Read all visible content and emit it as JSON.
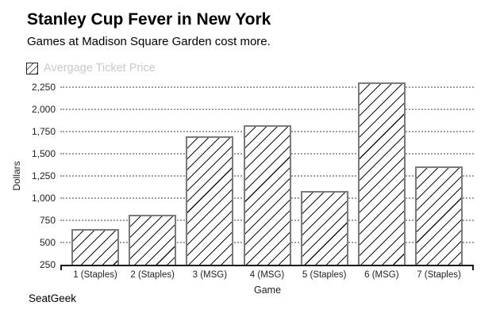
{
  "footer": {
    "brand": "SeatGeek"
  },
  "colors": {
    "background": "#ffffff",
    "title_text": "#000000",
    "legend_text": "#c9c9c9",
    "gridline": "#9e9e9e",
    "axis_line": "#1a1a1a",
    "tick_text": "#1f1f1f",
    "bar_border": "#7b7b7b",
    "bar_fill": "#ffffff",
    "hatch_line": "#141414"
  },
  "chart_data": {
    "type": "bar",
    "title": "Stanley Cup Fever in New York",
    "subtitle": "Games at Madison Square Garden cost more.",
    "series": [
      {
        "name": "Avergage Ticket Price",
        "values": [
          650,
          810,
          1700,
          1820,
          1080,
          2300,
          1360
        ]
      }
    ],
    "categories": [
      "1 (Staples)",
      "2 (Staples)",
      "3 (MSG)",
      "4 (MSG)",
      "5 (Staples)",
      "6 (MSG)",
      "7 (Staples)"
    ],
    "xlabel": "Game",
    "ylabel": "Dollars",
    "ylim": [
      250,
      2250
    ],
    "yticks": [
      250,
      500,
      750,
      1000,
      1250,
      1500,
      1750,
      2000,
      2250
    ],
    "ytick_labels": [
      "250",
      "500",
      "750",
      "1,000",
      "1,250",
      "1,500",
      "1,750",
      "2,000",
      "2,250"
    ],
    "grid": "horizontal dotted gridlines",
    "legend_position": "top-left",
    "bar_pattern": "white fill with black diagonal hatch and gray border"
  }
}
